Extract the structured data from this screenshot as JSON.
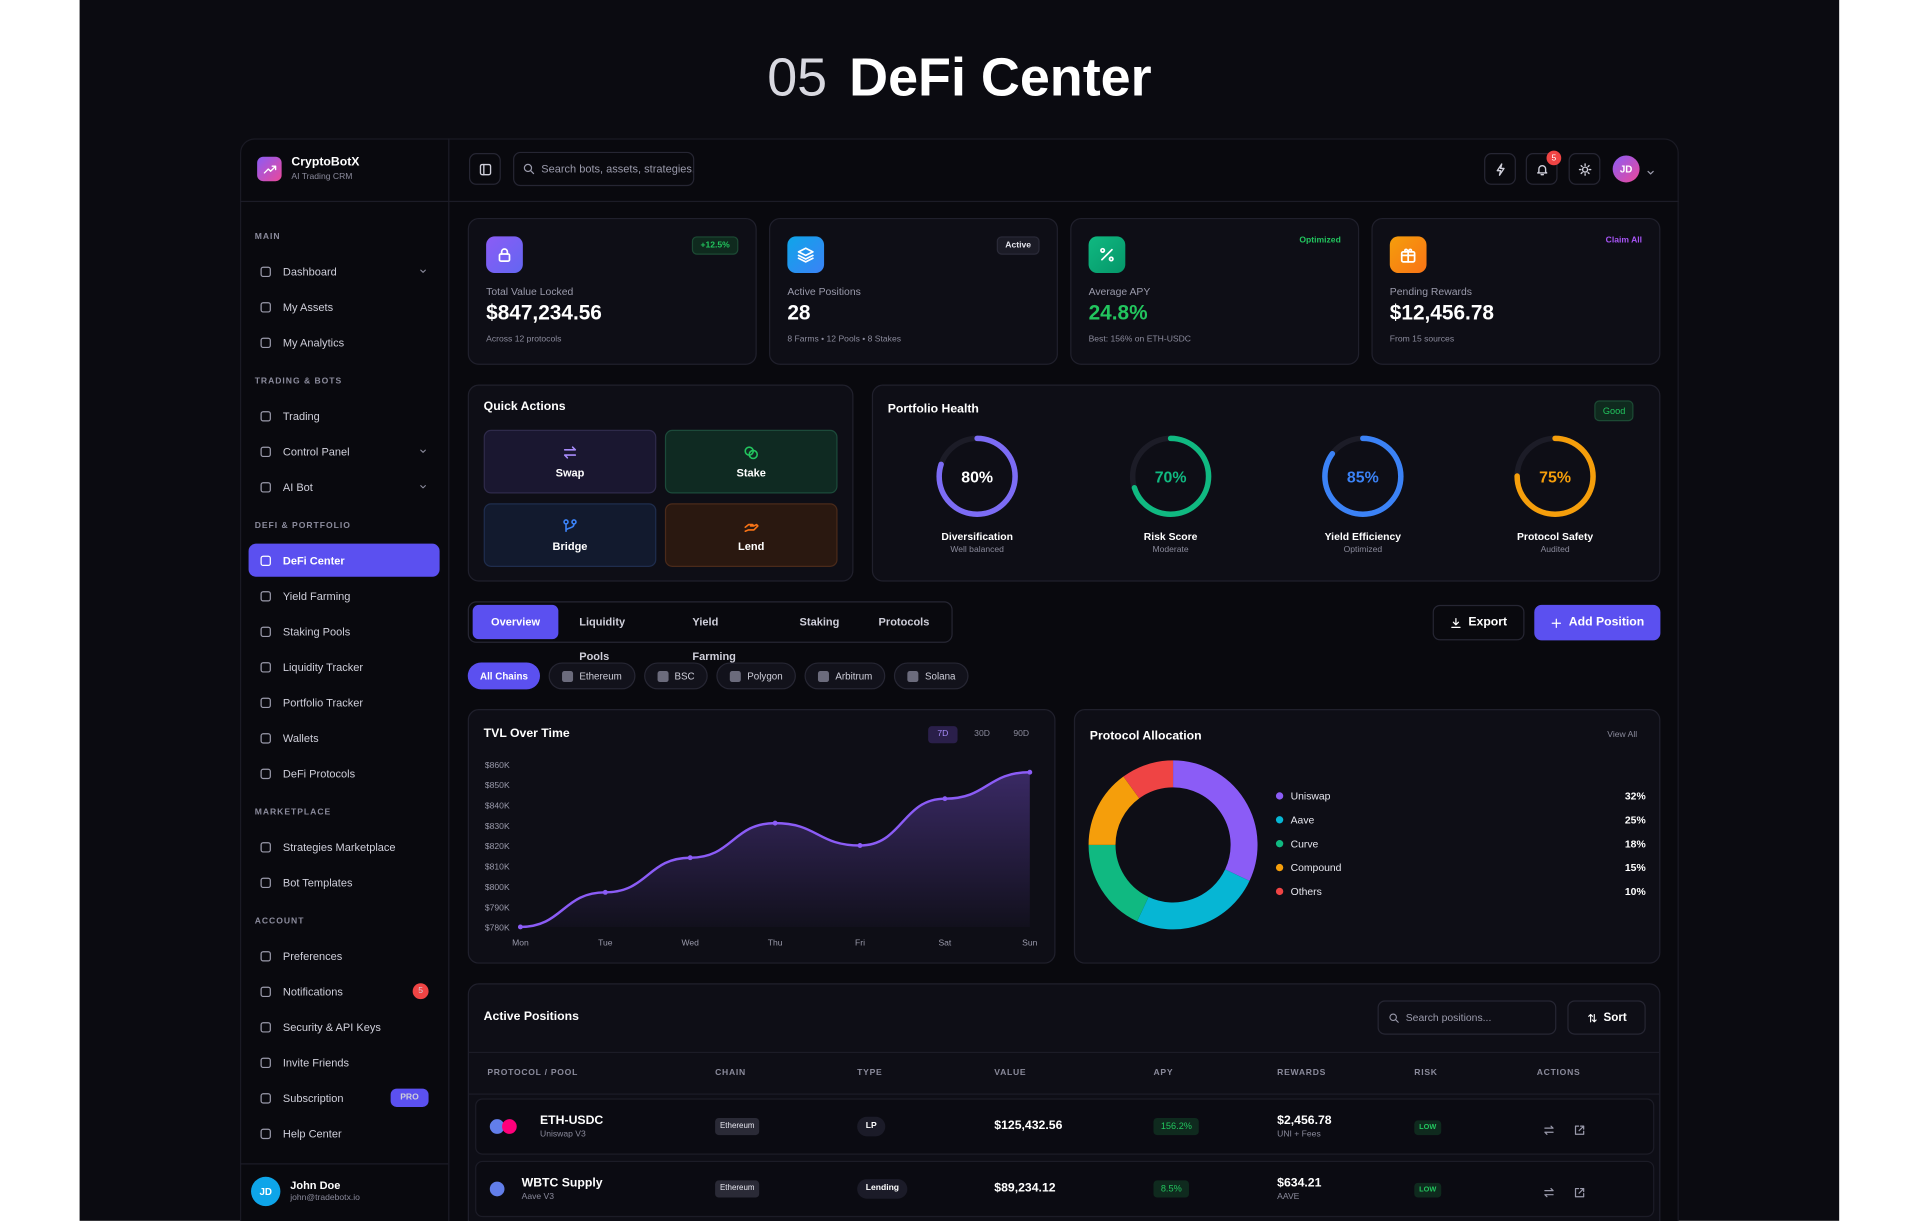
{
  "header": {
    "number": "05",
    "title": "DeFi Center"
  },
  "brand": {
    "name": "CryptoBotX",
    "tagline": "AI Trading CRM"
  },
  "sidebar": [
    {
      "label": "MAIN",
      "items": [
        {
          "label": "Dashboard",
          "expandable": true
        },
        {
          "label": "My Assets"
        },
        {
          "label": "My Analytics"
        }
      ]
    },
    {
      "label": "TRADING & BOTS",
      "items": [
        {
          "label": "Trading"
        },
        {
          "label": "Control Panel",
          "expandable": true
        },
        {
          "label": "AI Bot",
          "expandable": true
        }
      ]
    },
    {
      "label": "DEFI & PORTFOLIO",
      "items": [
        {
          "label": "DeFi Center",
          "active": true
        },
        {
          "label": "Yield Farming"
        },
        {
          "label": "Staking Pools"
        },
        {
          "label": "Liquidity Tracker"
        },
        {
          "label": "Portfolio Tracker"
        },
        {
          "label": "Wallets"
        },
        {
          "label": "DeFi Protocols"
        }
      ]
    },
    {
      "label": "MARKETPLACE",
      "items": [
        {
          "label": "Strategies Marketplace"
        },
        {
          "label": "Bot Templates"
        }
      ]
    },
    {
      "label": "ACCOUNT",
      "items": [
        {
          "label": "Preferences"
        },
        {
          "label": "Notifications",
          "badge": "5"
        },
        {
          "label": "Security & API Keys"
        },
        {
          "label": "Invite Friends"
        },
        {
          "label": "Subscription",
          "badge": "PRO"
        },
        {
          "label": "Help Center"
        }
      ]
    }
  ],
  "user": {
    "initials": "JD",
    "name": "John Doe",
    "email": "john@tradebotx.io"
  },
  "topbar": {
    "search": "Search bots, assets, strategies...",
    "notifications": "5",
    "avatar": "JD"
  },
  "stats": [
    {
      "label": "Total Value Locked",
      "value": "$847,234.56",
      "note": "Across 12 protocols",
      "badge": "+12.5%"
    },
    {
      "label": "Active Positions",
      "value": "28",
      "note": "8 Farms • 12 Pools • 8 Stakes",
      "badge": "Active"
    },
    {
      "label": "Average APY",
      "value": "24.8%",
      "note": "Best: 156% on ETH-USDC",
      "badge": "Optimized"
    },
    {
      "label": "Pending Rewards",
      "value": "$12,456.78",
      "note": "From 15 sources",
      "badge": "Claim All"
    }
  ],
  "quick_actions": {
    "title": "Quick Actions",
    "items": [
      "Swap",
      "Stake",
      "Bridge",
      "Lend"
    ]
  },
  "portfolio_health": {
    "title": "Portfolio Health",
    "status": "Good",
    "names": [
      "Diversification",
      "Risk Score",
      "Yield Efficiency",
      "Protocol Safety"
    ],
    "notes": [
      "Well balanced",
      "Moderate",
      "Optimized",
      "Audited"
    ],
    "values": [
      80,
      70,
      85,
      75
    ],
    "value_labels": [
      "80%",
      "70%",
      "85%",
      "75%"
    ],
    "colors": [
      "#7c6cf5",
      "#10b981",
      "#3b82f6",
      "#f59e0b"
    ]
  },
  "tabs": [
    "Overview",
    "Liquidity Pools",
    "Yield Farming",
    "Staking",
    "Protocols"
  ],
  "buttons": {
    "export": "Export",
    "add": "Add Position"
  },
  "chains": [
    "All Chains",
    "Ethereum",
    "BSC",
    "Polygon",
    "Arbitrum",
    "Solana"
  ],
  "chart_data": [
    {
      "type": "line",
      "title": "TVL Over Time",
      "ranges": [
        "7D",
        "30D",
        "90D"
      ],
      "categories": [
        "Mon",
        "Tue",
        "Wed",
        "Thu",
        "Fri",
        "Sat",
        "Sun"
      ],
      "values": [
        780000,
        797000,
        814000,
        831000,
        820000,
        843000,
        856000
      ],
      "color": "#8b5cf6",
      "ylim": [
        780000,
        860000
      ],
      "yticks": [
        {
          "value": 780000,
          "label": "$780K"
        },
        {
          "value": 790000,
          "label": "$790K"
        },
        {
          "value": 800000,
          "label": "$800K"
        },
        {
          "value": 810000,
          "label": "$810K"
        },
        {
          "value": 820000,
          "label": "$820K"
        },
        {
          "value": 830000,
          "label": "$830K"
        },
        {
          "value": 840000,
          "label": "$840K"
        },
        {
          "value": 850000,
          "label": "$850K"
        },
        {
          "value": 860000,
          "label": "$860K"
        }
      ]
    },
    {
      "type": "pie",
      "title": "Protocol Allocation",
      "link": "View All",
      "donut": true,
      "categories": [
        "Uniswap",
        "Aave",
        "Curve",
        "Compound",
        "Others"
      ],
      "values": [
        32,
        25,
        18,
        15,
        10
      ],
      "value_labels": [
        "32%",
        "25%",
        "18%",
        "15%",
        "10%"
      ],
      "colors": [
        "#8b5cf6",
        "#06b6d4",
        "#10b981",
        "#f59e0b",
        "#ef4444"
      ]
    }
  ],
  "positions": {
    "title": "Active Positions",
    "search": "Search positions...",
    "sort": "Sort",
    "columns": [
      "PROTOCOL / POOL",
      "CHAIN",
      "TYPE",
      "VALUE",
      "APY",
      "REWARDS",
      "RISK",
      "ACTIONS"
    ],
    "rows": [
      {
        "protocol": "ETH-USDC",
        "pool": "Uniswap V3",
        "chain": "Ethereum",
        "type": "LP",
        "value": "$125,432.56",
        "apy": "156.2%",
        "rewards": "$2,456.78",
        "reward_source": "UNI + Fees",
        "risk": "LOW"
      },
      {
        "protocol": "WBTC Supply",
        "pool": "Aave V3",
        "chain": "Ethereum",
        "type": "Lending",
        "value": "$89,234.12",
        "apy": "8.5%",
        "rewards": "$634.21",
        "reward_source": "AAVE",
        "risk": "LOW"
      }
    ]
  }
}
